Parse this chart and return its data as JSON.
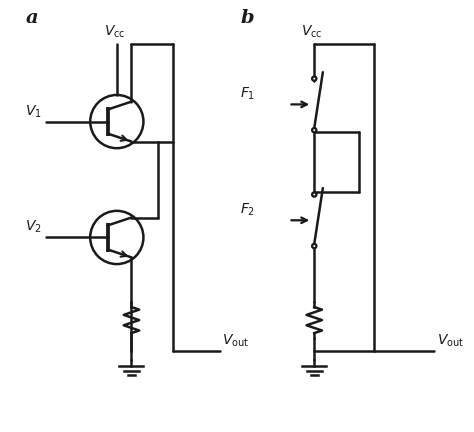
{
  "bg_color": "#ffffff",
  "line_color": "#1a1a1a",
  "line_width": 1.8,
  "label_a": "a",
  "label_b": "b",
  "vcc_label": "$V_{\\mathrm{cc}}$",
  "vout_label": "$V_{\\mathrm{out}}$",
  "v1_label": "$V_1$",
  "v2_label": "$V_2$",
  "f1_label": "$F_1$",
  "f2_label": "$F_2$"
}
